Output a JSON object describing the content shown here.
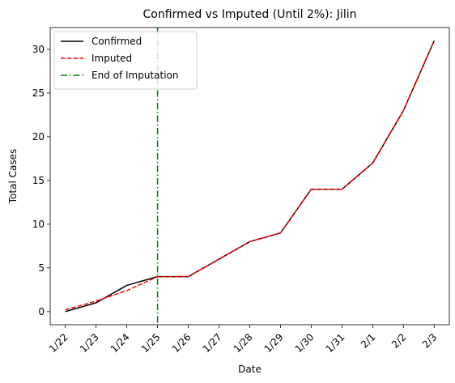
{
  "chart_data": {
    "type": "line",
    "title": "Confirmed vs Imputed (Until 2%): Jilin",
    "xlabel": "Date",
    "ylabel": "Total Cases",
    "categories": [
      "1/22",
      "1/23",
      "1/24",
      "1/25",
      "1/26",
      "1/27",
      "1/28",
      "1/29",
      "1/30",
      "1/31",
      "2/1",
      "2/2",
      "2/3"
    ],
    "ylim": [
      -1.5,
      32.5
    ],
    "yticks": [
      0,
      5,
      10,
      15,
      20,
      25,
      30
    ],
    "grid": false,
    "legend_position": "top-left",
    "series": [
      {
        "name": "Confirmed",
        "style": "solid",
        "color": "#000000",
        "values": [
          0,
          1,
          3,
          4,
          4,
          6,
          8,
          9,
          14,
          14,
          17,
          23,
          31
        ]
      },
      {
        "name": "Imputed",
        "style": "dashed",
        "color": "#ff0000",
        "values": [
          0.2,
          1.2,
          2.4,
          4,
          4,
          6,
          8,
          9,
          14,
          14,
          17,
          23,
          31
        ]
      }
    ],
    "vline": {
      "name": "End of Imputation",
      "x": "1/25",
      "style": "dashdot",
      "color": "#008000"
    }
  }
}
